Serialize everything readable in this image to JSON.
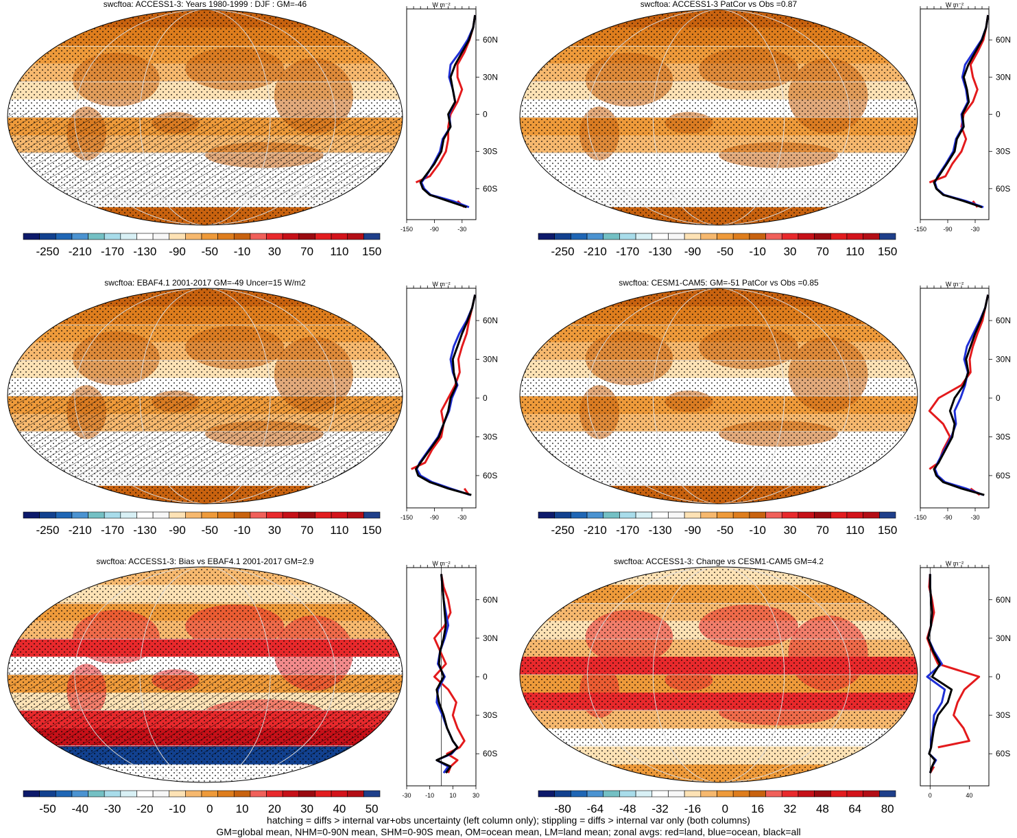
{
  "figure": {
    "footer": [
      "hatching = diffs > internal var+obs uncertainty (left column only); stippling = diffs > internal var only (both columns)",
      "GM=global mean, NHM=0-90N mean, SHM=0-90S mean, OM=ocean mean, LM=land mean; zonal avgs: red=land, blue=ocean, black=all"
    ],
    "zonal_unit": "W m⁻²",
    "lat_labels": [
      "60N",
      "30N",
      "0",
      "30S",
      "60S"
    ],
    "colors": {
      "land": "#e31a1c",
      "ocean": "#1f2fd6",
      "all": "#000000"
    }
  },
  "chart_data": [
    {
      "type": "heatmap",
      "title": "swcftoa: ACCESS1-3: Years 1980-1999 : DJF : GM=-46",
      "colorbar_ticks": [
        "-250",
        "-210",
        "-170",
        "-130",
        "-90",
        "-50",
        "-10",
        "30",
        "70",
        "110",
        "150"
      ],
      "palette": "full",
      "hatching": true,
      "zonal": {
        "xticks": [
          "-150",
          "-90",
          "-30"
        ],
        "xlim": [
          -150,
          0
        ],
        "lat": [
          80,
          70,
          60,
          50,
          40,
          30,
          20,
          10,
          0,
          -10,
          -20,
          -30,
          -40,
          -50,
          -55,
          -60,
          -65,
          -70,
          -75
        ],
        "all": [
          -2,
          -6,
          -15,
          -30,
          -45,
          -55,
          -50,
          -45,
          -60,
          -55,
          -70,
          -75,
          -90,
          -110,
          -120,
          -115,
          -100,
          -60,
          -20
        ],
        "land": [
          -2,
          -6,
          -14,
          -25,
          -40,
          -40,
          -30,
          -40,
          -55,
          -60,
          -60,
          -65,
          -80,
          -100,
          -130,
          null,
          null,
          -40,
          -25
        ],
        "ocean": [
          -2,
          -6,
          -18,
          -35,
          -55,
          -58,
          -50,
          -45,
          -58,
          -55,
          -72,
          -78,
          -92,
          -108,
          -118,
          -112,
          -98,
          -50,
          -15
        ]
      }
    },
    {
      "type": "heatmap",
      "title": "swcftoa: ACCESS1-3 PatCor vs Obs =0.87",
      "colorbar_ticks": [
        "-250",
        "-210",
        "-170",
        "-130",
        "-90",
        "-50",
        "-10",
        "30",
        "70",
        "110",
        "150"
      ],
      "palette": "full",
      "hatching": false,
      "zonal": {
        "xticks": [
          "-150",
          "-90",
          "-30"
        ],
        "xlim": [
          -150,
          0
        ],
        "lat": [
          80,
          70,
          60,
          50,
          40,
          30,
          20,
          10,
          0,
          -10,
          -20,
          -30,
          -40,
          -50,
          -55,
          -60,
          -65,
          -70,
          -75
        ],
        "all": [
          -2,
          -6,
          -15,
          -30,
          -45,
          -55,
          -48,
          -44,
          -58,
          -55,
          -70,
          -75,
          -92,
          -110,
          -120,
          -115,
          -100,
          -55,
          -15
        ],
        "land": [
          -2,
          -6,
          -12,
          -25,
          -40,
          -35,
          -25,
          -35,
          -55,
          -60,
          -50,
          -60,
          -80,
          -95,
          -130,
          null,
          null,
          -35,
          -25
        ],
        "ocean": [
          -2,
          -6,
          -16,
          -34,
          -52,
          -58,
          -50,
          -46,
          -60,
          -57,
          -72,
          -78,
          -94,
          -112,
          -118,
          -114,
          -98,
          -50,
          -12
        ]
      }
    },
    {
      "type": "heatmap",
      "title": "swcftoa: EBAF4.1 2001-2017 GM=-49 Uncer=15 W/m2",
      "colorbar_ticks": [
        "-250",
        "-210",
        "-170",
        "-130",
        "-90",
        "-50",
        "-10",
        "30",
        "70",
        "110",
        "150"
      ],
      "palette": "full",
      "hatching": true,
      "zonal": {
        "xticks": [
          "-150",
          "-90",
          "-30"
        ],
        "xlim": [
          -150,
          0
        ],
        "lat": [
          80,
          70,
          60,
          50,
          40,
          30,
          20,
          10,
          0,
          -10,
          -20,
          -30,
          -40,
          -50,
          -55,
          -60,
          -65,
          -70,
          -75
        ],
        "all": [
          -2,
          -8,
          -18,
          -30,
          -40,
          -50,
          -48,
          -42,
          -55,
          -60,
          -70,
          -80,
          -100,
          -120,
          -130,
          -125,
          -100,
          -60,
          -10
        ],
        "land": [
          -2,
          -8,
          -15,
          -20,
          -30,
          -38,
          -35,
          -45,
          -60,
          -75,
          -70,
          -75,
          -95,
          -110,
          -140,
          null,
          null,
          -25,
          -15
        ],
        "ocean": [
          -2,
          -8,
          -20,
          -36,
          -48,
          -55,
          -50,
          -40,
          -52,
          -58,
          -70,
          -82,
          -102,
          -122,
          -128,
          -120,
          -95,
          -55,
          -12
        ]
      }
    },
    {
      "type": "heatmap",
      "title": "swcftoa: CESM1-CAM5: GM=-51 PatCor vs Obs =0.85",
      "colorbar_ticks": [
        "-250",
        "-210",
        "-170",
        "-130",
        "-90",
        "-50",
        "-10",
        "30",
        "70",
        "110",
        "150"
      ],
      "palette": "full",
      "hatching": false,
      "zonal": {
        "xticks": [
          "-150",
          "-90",
          "-30"
        ],
        "xlim": [
          -150,
          0
        ],
        "lat": [
          80,
          70,
          60,
          50,
          40,
          30,
          20,
          10,
          0,
          -10,
          -20,
          -30,
          -40,
          -50,
          -55,
          -60,
          -65,
          -70,
          -75
        ],
        "all": [
          -2,
          -8,
          -18,
          -30,
          -40,
          -50,
          -45,
          -55,
          -75,
          -85,
          -75,
          -80,
          -95,
          -110,
          -120,
          -115,
          -100,
          -60,
          -10
        ],
        "land": [
          -2,
          -8,
          -14,
          -25,
          -35,
          -42,
          -40,
          -60,
          -110,
          -130,
          -100,
          -85,
          -100,
          -110,
          -130,
          null,
          null,
          -40,
          -20
        ],
        "ocean": [
          -2,
          -8,
          -20,
          -34,
          -48,
          -54,
          -46,
          -52,
          -62,
          -75,
          -72,
          -82,
          -97,
          -112,
          -118,
          -112,
          -96,
          -50,
          -12
        ]
      }
    },
    {
      "type": "heatmap",
      "title": "swcftoa: ACCESS1-3: Bias vs EBAF4.1 2001-2017 GM=2.9",
      "colorbar_ticks": [
        "-50",
        "-40",
        "-30",
        "-20",
        "-10",
        "0",
        "10",
        "20",
        "30",
        "40",
        "50"
      ],
      "palette": "full",
      "hatching": true,
      "zonal": {
        "xticks": [
          "-30",
          "-10",
          "10",
          "30"
        ],
        "xlim": [
          -30,
          30
        ],
        "lat": [
          80,
          70,
          60,
          50,
          40,
          30,
          20,
          10,
          0,
          -10,
          -20,
          -30,
          -40,
          -50,
          -55,
          -60,
          -65,
          -70,
          -75
        ],
        "all": [
          0,
          1,
          2,
          3,
          4,
          2,
          -1,
          -2,
          2,
          -4,
          -2,
          2,
          5,
          10,
          14,
          8,
          -4,
          8,
          4
        ],
        "land": [
          0,
          2,
          6,
          8,
          3,
          -6,
          -1,
          4,
          -6,
          6,
          13,
          10,
          14,
          20,
          16,
          5,
          14,
          8,
          6
        ],
        "ocean": [
          0,
          1,
          2,
          4,
          6,
          3,
          -1,
          -3,
          3,
          -3,
          -4,
          1,
          5,
          10,
          14,
          9,
          -4,
          6,
          2
        ]
      }
    },
    {
      "type": "heatmap",
      "title": "swcftoa: ACCESS1-3: Change vs CESM1-CAM5 GM=4.2",
      "colorbar_ticks": [
        "-80",
        "-64",
        "-48",
        "-32",
        "-16",
        "0",
        "16",
        "32",
        "48",
        "64",
        "80"
      ],
      "palette": "full",
      "hatching": false,
      "zonal": {
        "xticks": [
          "0",
          "40"
        ],
        "xlim": [
          -10,
          60
        ],
        "lat": [
          80,
          70,
          60,
          50,
          40,
          30,
          20,
          10,
          0,
          -10,
          -20,
          -30,
          -40,
          -50,
          -55,
          -60,
          -65,
          -70,
          -75
        ],
        "all": [
          0,
          0,
          1,
          2,
          1,
          -2,
          3,
          10,
          2,
          22,
          18,
          8,
          4,
          2,
          1,
          -1,
          5,
          2,
          0
        ],
        "land": [
          0,
          -1,
          2,
          4,
          1,
          -3,
          2,
          8,
          50,
          35,
          28,
          24,
          34,
          40,
          8,
          null,
          null,
          4,
          0
        ],
        "ocean": [
          0,
          0,
          1,
          2,
          1,
          -2,
          4,
          12,
          -3,
          15,
          12,
          4,
          3,
          1,
          1,
          -1,
          6,
          2,
          0
        ]
      }
    }
  ]
}
